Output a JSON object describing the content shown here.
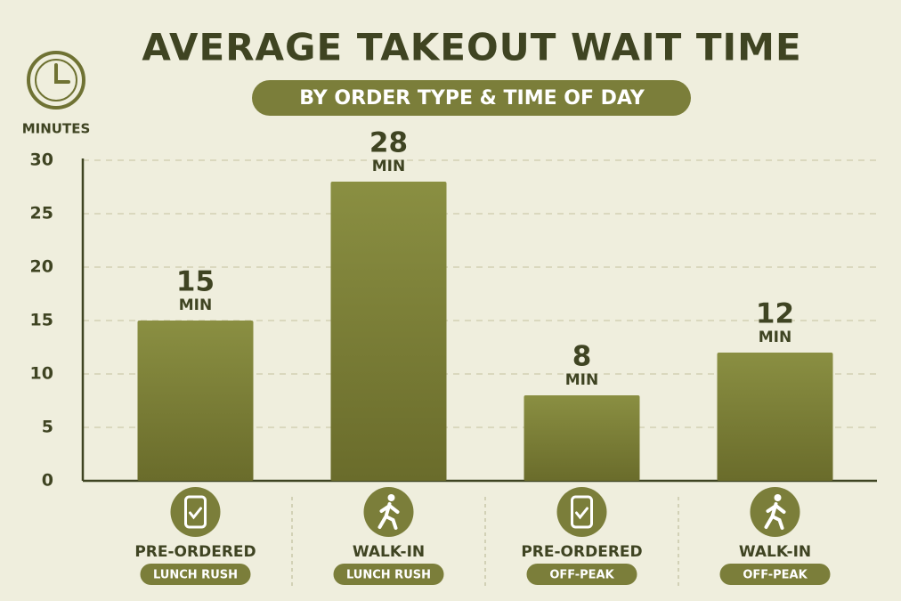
{
  "chart_data": {
    "type": "bar",
    "title": "AVERAGE TAKEOUT WAIT TIME",
    "subtitle": "BY ORDER TYPE & TIME OF DAY",
    "y_axis_label": "MINUTES",
    "categories": [
      "PRE-ORDERED",
      "WALK-IN",
      "PRE-ORDERED",
      "WALK-IN"
    ],
    "subcategories": [
      "LUNCH RUSH",
      "LUNCH RUSH",
      "OFF-PEAK",
      "OFF-PEAK"
    ],
    "values": [
      15,
      28,
      8,
      12
    ],
    "value_unit": "MIN",
    "color": "#7e8236",
    "ylim": [
      0,
      30
    ],
    "yticks": [
      0,
      5,
      10,
      15,
      20,
      25,
      30
    ],
    "grid": true
  }
}
